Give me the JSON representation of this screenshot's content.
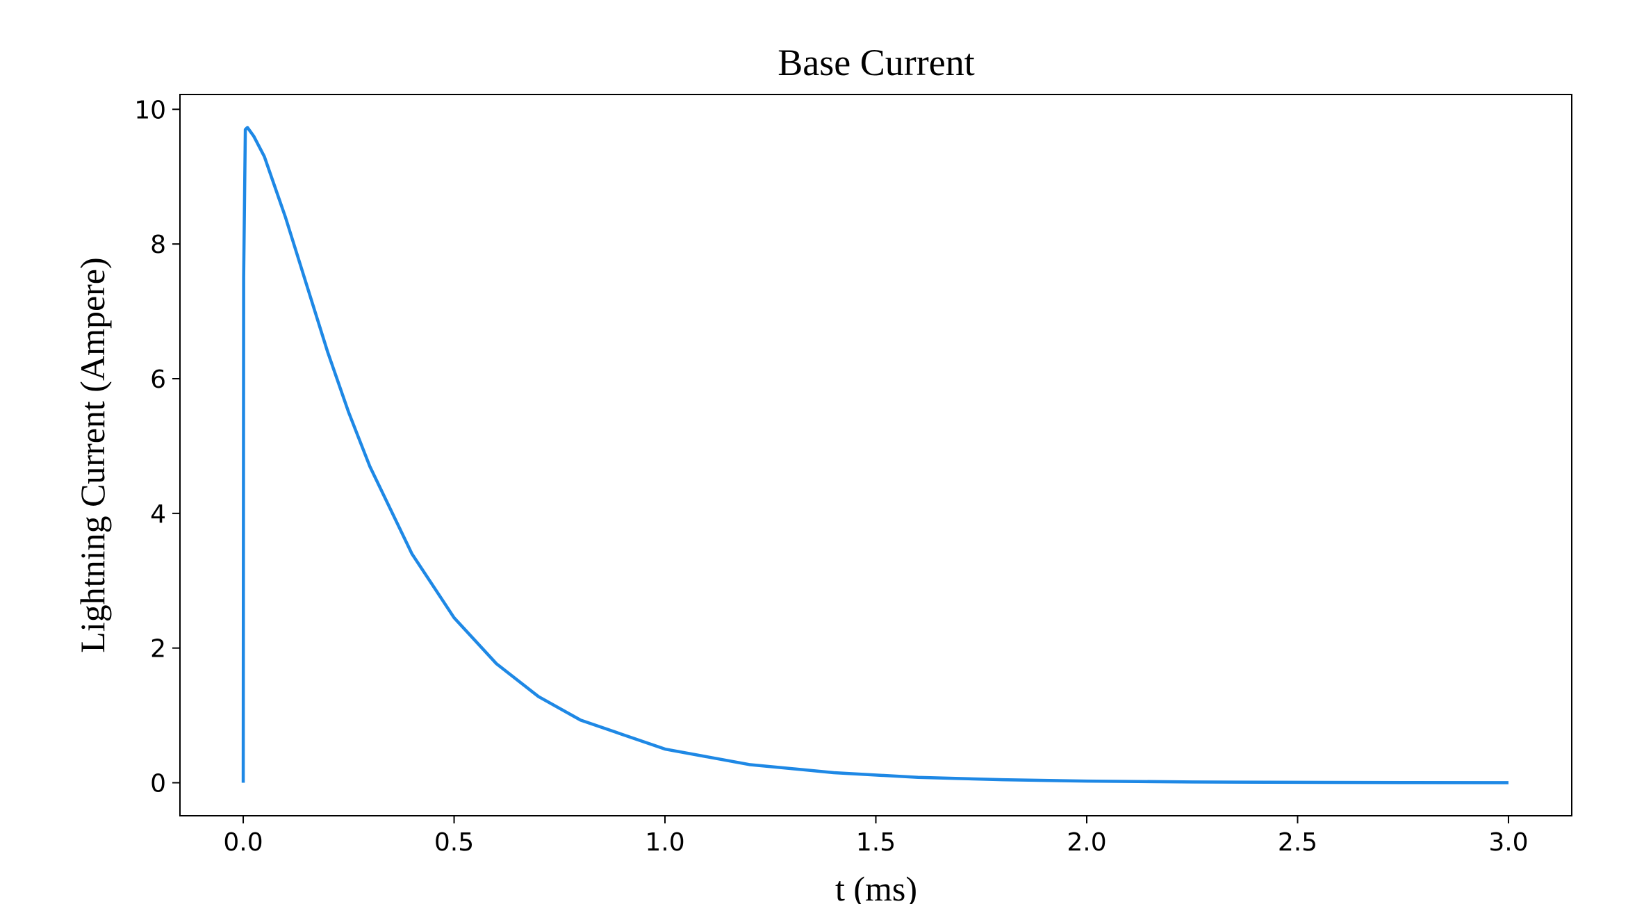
{
  "chart_data": {
    "type": "line",
    "title": "Base Current",
    "x_label": "t (ms)",
    "y_label": "Lightning Current (Ampere)",
    "x": [
      0,
      0.001,
      0.005,
      0.01,
      0.025,
      0.05,
      0.1,
      0.15,
      0.2,
      0.25,
      0.3,
      0.4,
      0.5,
      0.6,
      0.7,
      0.8,
      1.0,
      1.2,
      1.4,
      1.6,
      1.8,
      2.0,
      2.25,
      2.5,
      2.75,
      3.0
    ],
    "series": [
      {
        "color": "#1e88e5",
        "values": [
          0,
          7.5,
          9.7,
          9.73,
          9.6,
          9.3,
          8.4,
          7.4,
          6.4,
          5.5,
          4.7,
          3.4,
          2.45,
          1.77,
          1.28,
          0.93,
          0.5,
          0.27,
          0.15,
          0.08,
          0.045,
          0.025,
          0.012,
          0.006,
          0.003,
          0.0015
        ]
      }
    ],
    "xlim": [
      -0.15,
      3.15
    ],
    "ylim": [
      -0.49,
      10.22
    ],
    "xticks": [
      {
        "value": 0,
        "label": "0.0"
      },
      0.5,
      {
        "value": 1,
        "label": "1.0"
      },
      1.5,
      {
        "value": 2,
        "label": "2.0"
      },
      2.5,
      {
        "value": 3,
        "label": "3.0"
      }
    ],
    "yticks": [
      0,
      2,
      4,
      6,
      8,
      10
    ],
    "grid": false
  }
}
